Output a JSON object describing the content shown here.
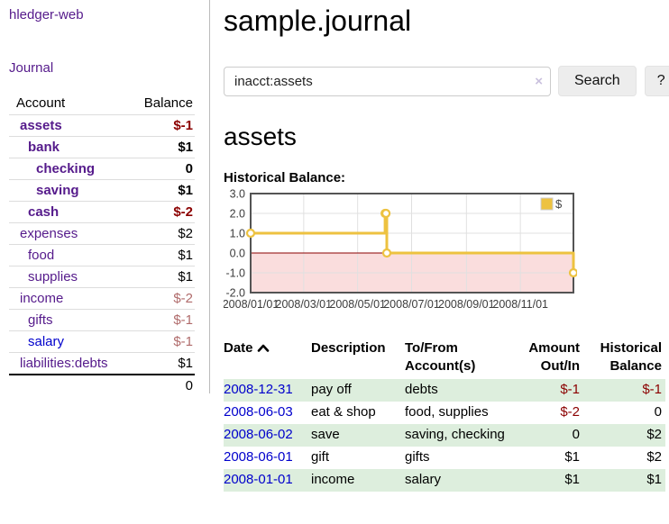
{
  "app": {
    "brand": "hledger-web"
  },
  "sidebar": {
    "journal_link": "Journal",
    "accounts": {
      "col_account": "Account",
      "col_balance": "Balance",
      "rows": [
        {
          "name": "assets",
          "balance": "$-1"
        },
        {
          "name": "bank",
          "balance": "$1"
        },
        {
          "name": "checking",
          "balance": "0"
        },
        {
          "name": "saving",
          "balance": "$1"
        },
        {
          "name": "cash",
          "balance": "$-2"
        },
        {
          "name": "expenses",
          "balance": "$2"
        },
        {
          "name": "food",
          "balance": "$1"
        },
        {
          "name": "supplies",
          "balance": "$1"
        },
        {
          "name": "income",
          "balance": "$-2"
        },
        {
          "name": "gifts",
          "balance": "$-1"
        },
        {
          "name": "salary",
          "balance": "$-1"
        },
        {
          "name": "liabilities:debts",
          "balance": "$1"
        }
      ],
      "total": "0"
    }
  },
  "main": {
    "title": "sample.journal",
    "search": {
      "value": "inacct:assets",
      "clear_label": "×",
      "button_label": "Search",
      "help_label": "?"
    },
    "heading": "assets",
    "chart_label": "Historical Balance:"
  },
  "chart_data": {
    "type": "line",
    "title": "Historical Balance",
    "legend_position": "top-right",
    "grid": true,
    "grid_color": "#e0e0e0",
    "border_color": "#545454",
    "negative_region_color": "#fadddd",
    "zero_line_color": "#8b0000",
    "ylim": [
      -2,
      3
    ],
    "y_axis": {
      "ticks": [
        3.0,
        2.0,
        1.0,
        0.0,
        -1.0,
        -2.0
      ]
    },
    "x_axis": {
      "range_days": 365,
      "tick_days": [
        0,
        60,
        121,
        182,
        244,
        305
      ],
      "tick_labels": [
        "2008/01/01",
        "2008/03/01",
        "2008/05/01",
        "2008/07/01",
        "2008/09/01",
        "2008/11/01"
      ]
    },
    "series": [
      {
        "name": "$",
        "color": "#edc240",
        "step": true,
        "points": [
          {
            "date": "2008-01-01",
            "day": 0,
            "value": 1
          },
          {
            "date": "2008-06-01",
            "day": 152,
            "value": 2
          },
          {
            "date": "2008-06-02",
            "day": 153,
            "value": 2
          },
          {
            "date": "2008-06-03",
            "day": 154,
            "value": 0
          },
          {
            "date": "2008-12-31",
            "day": 365,
            "value": -1
          }
        ]
      }
    ]
  },
  "transactions": {
    "headers": {
      "date": "Date",
      "sort_icon": "chevron-up",
      "description": "Description",
      "accounts": "To/From Account(s)",
      "amount": "Amount Out/In",
      "balance": "Historical Balance"
    },
    "rows": [
      {
        "date": "2008-12-31",
        "description": "pay off",
        "accounts": "debts",
        "amount": "$-1",
        "balance": "$-1"
      },
      {
        "date": "2008-06-03",
        "description": "eat & shop",
        "accounts": "food, supplies",
        "amount": "$-2",
        "balance": "0"
      },
      {
        "date": "2008-06-02",
        "description": "save",
        "accounts": "saving, checking",
        "amount": "0",
        "balance": "$2"
      },
      {
        "date": "2008-06-01",
        "description": "gift",
        "accounts": "gifts",
        "amount": "$1",
        "balance": "$2"
      },
      {
        "date": "2008-01-01",
        "description": "income",
        "accounts": "salary",
        "amount": "$1",
        "balance": "$1"
      }
    ]
  }
}
